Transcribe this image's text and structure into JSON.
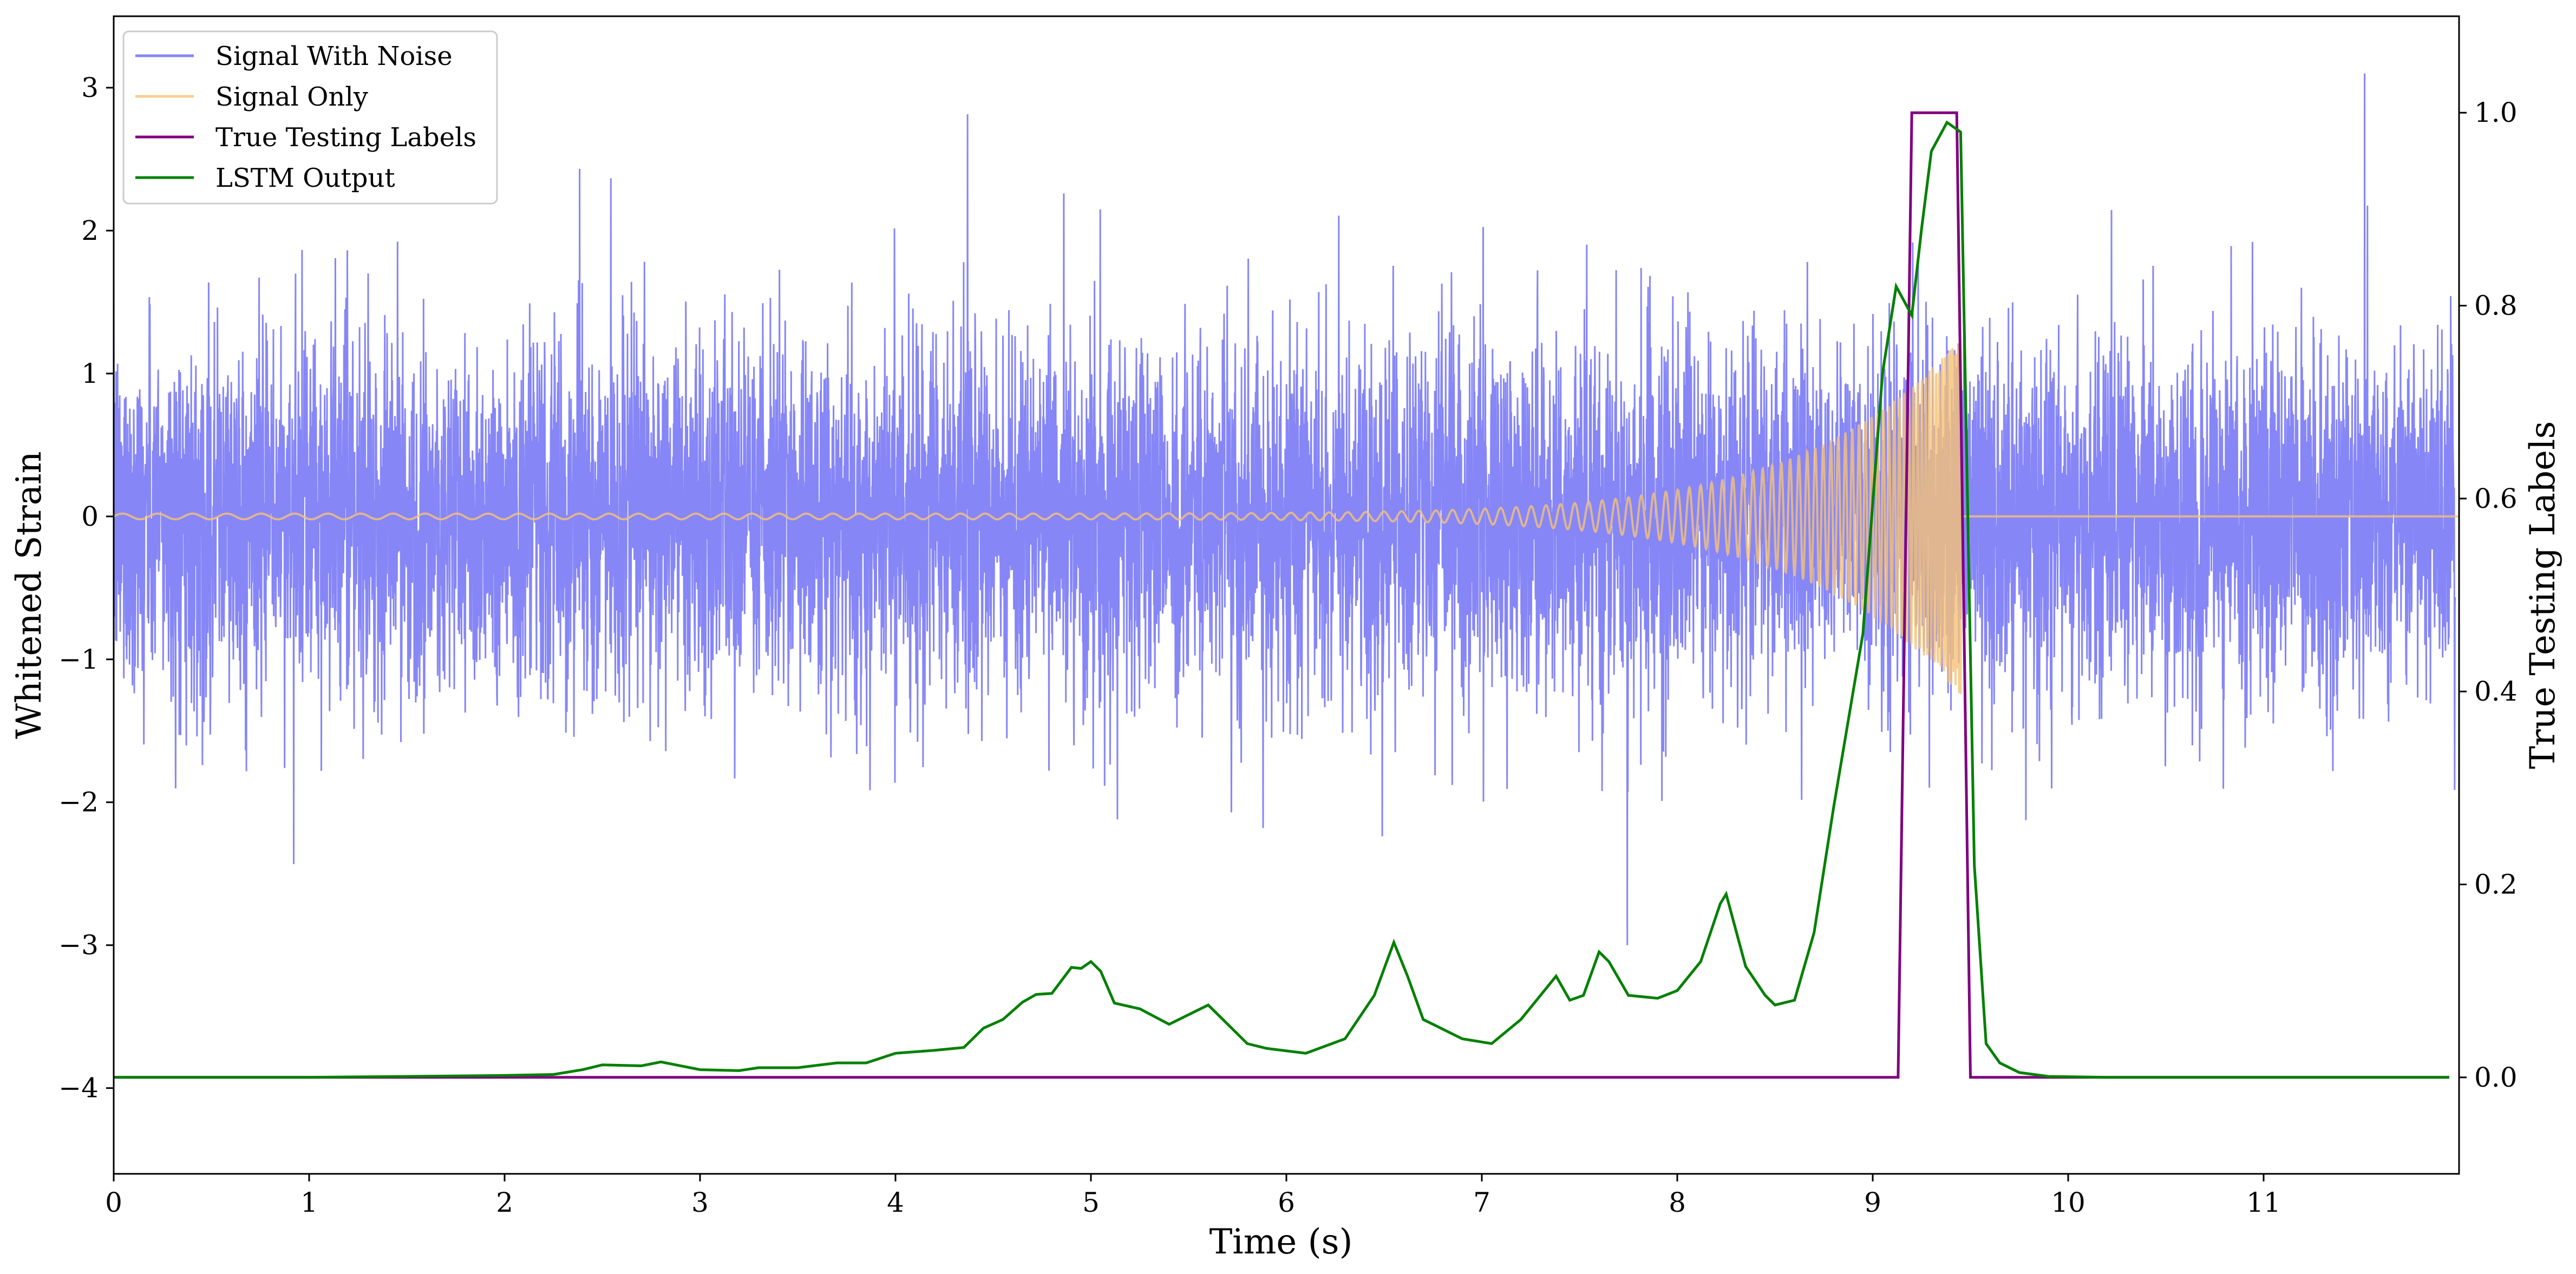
{
  "chart_data": {
    "type": "line",
    "xlabel": "Time (s)",
    "ylabel": "Whitened Strain",
    "y2label": "True Testing Labels",
    "xlim": [
      0,
      12
    ],
    "ylim": [
      -4.6,
      3.5
    ],
    "y2lim": [
      -0.1,
      1.1
    ],
    "x_ticks": [
      0,
      1,
      2,
      3,
      4,
      5,
      6,
      7,
      8,
      9,
      10,
      11
    ],
    "y_ticks": [
      -4,
      -3,
      -2,
      -1,
      0,
      1,
      2,
      3
    ],
    "y2_ticks": [
      0.0,
      0.2,
      0.4,
      0.6,
      0.8,
      1.0
    ],
    "legend_position": "upper-left",
    "grid": false,
    "series": [
      {
        "name": "Signal With Noise",
        "axis": "left",
        "color": "#7f7ff7",
        "description_values": "noise_band",
        "typical_range": [
          -1.3,
          1.3
        ],
        "peak_max": 3.1,
        "peak_min": -3.0
      },
      {
        "name": "Signal Only",
        "axis": "left",
        "color": "#f5c275",
        "chirp_start": 0,
        "chirp_end": 9.45,
        "amp_start": 0.02,
        "amp_end": 1.25
      },
      {
        "name": "True Testing Labels",
        "axis": "right",
        "color": "#800080",
        "x": [
          0,
          9.13,
          9.2,
          9.43,
          9.5,
          11.95
        ],
        "values": [
          0,
          0,
          1,
          1,
          0,
          0
        ]
      },
      {
        "name": "LSTM Output",
        "axis": "right",
        "color": "#008000",
        "x": [
          0,
          1.0,
          2.0,
          2.25,
          2.4,
          2.5,
          2.7,
          2.8,
          3.0,
          3.2,
          3.3,
          3.5,
          3.7,
          3.85,
          4.0,
          4.2,
          4.35,
          4.45,
          4.55,
          4.65,
          4.72,
          4.8,
          4.9,
          4.95,
          5.0,
          5.05,
          5.12,
          5.25,
          5.4,
          5.5,
          5.6,
          5.7,
          5.8,
          5.9,
          6.1,
          6.3,
          6.45,
          6.55,
          6.62,
          6.7,
          6.9,
          7.05,
          7.2,
          7.3,
          7.38,
          7.45,
          7.52,
          7.6,
          7.65,
          7.75,
          7.9,
          8.0,
          8.12,
          8.22,
          8.25,
          8.35,
          8.45,
          8.5,
          8.6,
          8.7,
          8.8,
          8.95,
          9.05,
          9.12,
          9.2,
          9.25,
          9.3,
          9.38,
          9.45,
          9.52,
          9.58,
          9.65,
          9.75,
          9.9,
          10.2,
          11.0,
          11.95
        ],
        "values": [
          0,
          0,
          0.002,
          0.003,
          0.008,
          0.013,
          0.012,
          0.016,
          0.008,
          0.007,
          0.01,
          0.01,
          0.015,
          0.015,
          0.025,
          0.028,
          0.031,
          0.051,
          0.06,
          0.078,
          0.086,
          0.087,
          0.114,
          0.113,
          0.12,
          0.11,
          0.077,
          0.071,
          0.055,
          0.065,
          0.075,
          0.055,
          0.035,
          0.03,
          0.025,
          0.04,
          0.085,
          0.14,
          0.105,
          0.06,
          0.04,
          0.035,
          0.06,
          0.085,
          0.105,
          0.08,
          0.085,
          0.13,
          0.12,
          0.085,
          0.082,
          0.09,
          0.12,
          0.18,
          0.19,
          0.115,
          0.085,
          0.075,
          0.08,
          0.15,
          0.28,
          0.46,
          0.73,
          0.82,
          0.79,
          0.88,
          0.96,
          0.99,
          0.98,
          0.22,
          0.035,
          0.015,
          0.005,
          0.001,
          0.0,
          0.0,
          0.0
        ]
      }
    ]
  }
}
